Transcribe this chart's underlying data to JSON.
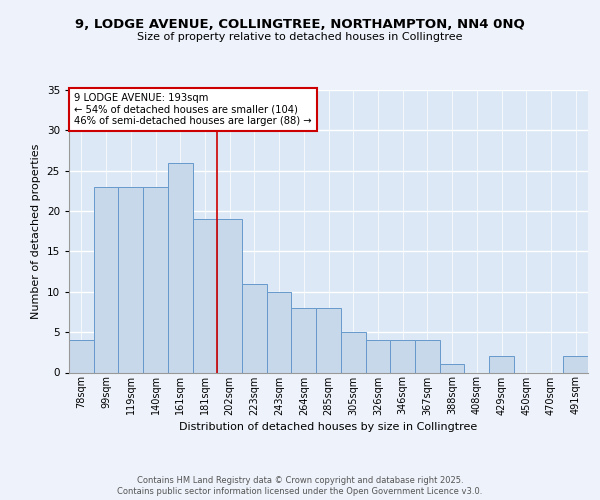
{
  "title_line1": "9, LODGE AVENUE, COLLINGTREE, NORTHAMPTON, NN4 0NQ",
  "title_line2": "Size of property relative to detached houses in Collingtree",
  "xlabel": "Distribution of detached houses by size in Collingtree",
  "ylabel": "Number of detached properties",
  "categories": [
    "78sqm",
    "99sqm",
    "119sqm",
    "140sqm",
    "161sqm",
    "181sqm",
    "202sqm",
    "223sqm",
    "243sqm",
    "264sqm",
    "285sqm",
    "305sqm",
    "326sqm",
    "346sqm",
    "367sqm",
    "388sqm",
    "408sqm",
    "429sqm",
    "450sqm",
    "470sqm",
    "491sqm"
  ],
  "values": [
    4,
    23,
    23,
    23,
    26,
    19,
    19,
    11,
    10,
    8,
    8,
    5,
    4,
    4,
    4,
    1,
    0,
    2,
    0,
    0,
    2
  ],
  "bar_color": "#c8d8eb",
  "bar_edge_color": "#6699cc",
  "reference_line_x": 5.5,
  "annotation_line1": "9 LODGE AVENUE: 193sqm",
  "annotation_line2": "← 54% of detached houses are smaller (104)",
  "annotation_line3": "46% of semi-detached houses are larger (88) →",
  "ylim": [
    0,
    35
  ],
  "yticks": [
    0,
    5,
    10,
    15,
    20,
    25,
    30,
    35
  ],
  "footer_line1": "Contains HM Land Registry data © Crown copyright and database right 2025.",
  "footer_line2": "Contains public sector information licensed under the Open Government Licence v3.0.",
  "bg_color": "#eef2fa",
  "plot_bg_color": "#dce8f5",
  "annotation_box_color": "#ffffff",
  "annotation_box_edge": "#cc0000",
  "reference_line_color": "#cc0000",
  "grid_color": "#ffffff"
}
